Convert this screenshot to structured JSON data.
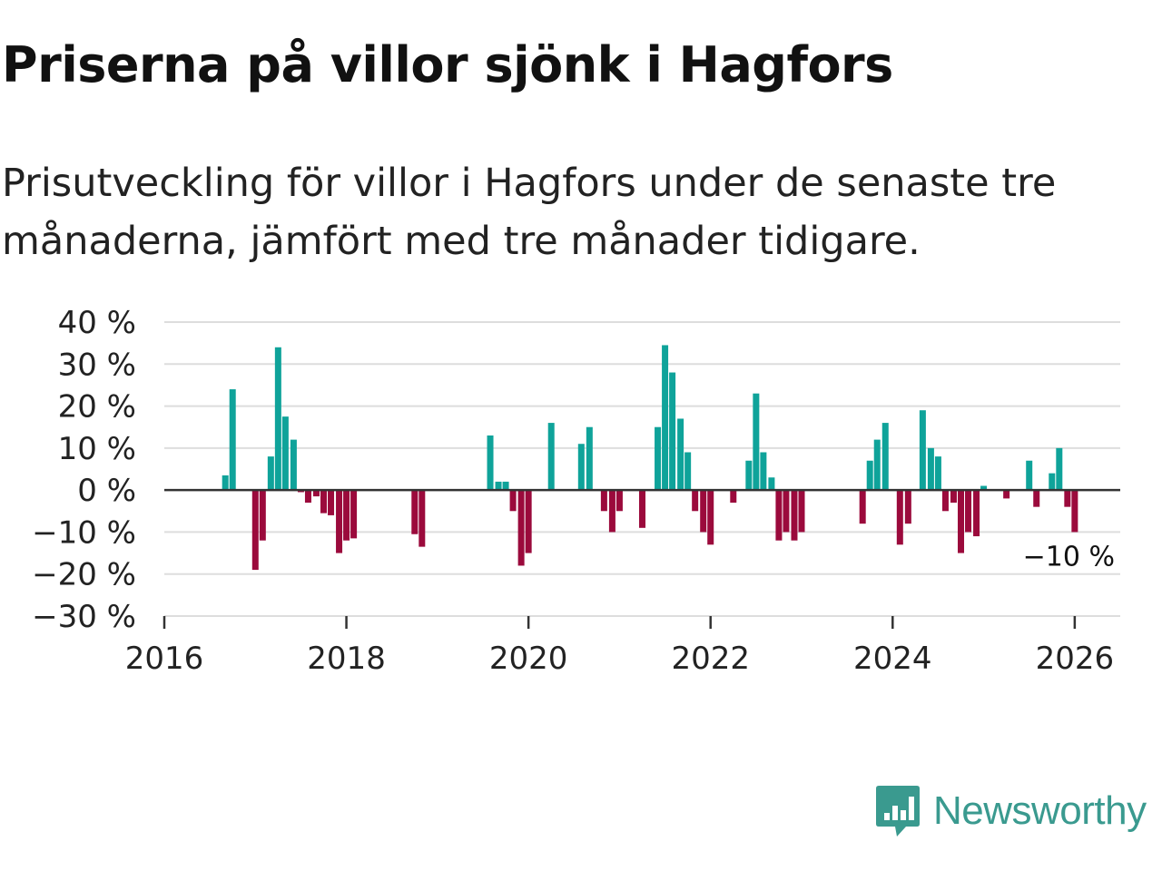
{
  "title": "Priserna på villor sjönk i Hagfors",
  "subtitle": "Prisutveckling för villor i Hagfors under de senaste tre månaderna, jämfört med tre månader tidigare.",
  "brand": {
    "name": "Newsworthy",
    "color": "#3a9a8f",
    "icon": "newsworthy-chart-bubble-icon"
  },
  "colors": {
    "positive": "#0fa39a",
    "negative": "#9b0a3c",
    "grid": "#dddddd",
    "zero": "#333333"
  },
  "chart_data": {
    "type": "bar",
    "title": "Priserna på villor sjönk i Hagfors",
    "xlabel": "",
    "ylabel": "",
    "ylim": [
      -30,
      40
    ],
    "xlim": [
      2016,
      2026.5
    ],
    "y_ticks": [
      40,
      30,
      20,
      10,
      0,
      -10,
      -20,
      -30
    ],
    "y_tick_labels": [
      "40 %",
      "30 %",
      "20 %",
      "10 %",
      "0 %",
      "−10 %",
      "−20 %",
      "−30 %"
    ],
    "x_ticks": [
      2016,
      2018,
      2020,
      2022,
      2024,
      2026
    ],
    "x_tick_labels": [
      "2016",
      "2018",
      "2020",
      "2022",
      "2024",
      "2026"
    ],
    "last_value_label": "−10 %",
    "series": [
      {
        "name": "Prisutveckling",
        "x": [
          2016.67,
          2016.75,
          2017.0,
          2017.08,
          2017.17,
          2017.25,
          2017.33,
          2017.42,
          2017.5,
          2017.58,
          2017.67,
          2017.75,
          2017.83,
          2017.92,
          2018.0,
          2018.08,
          2018.75,
          2018.83,
          2019.58,
          2019.67,
          2019.75,
          2019.83,
          2019.92,
          2020.0,
          2020.25,
          2020.58,
          2020.67,
          2020.83,
          2020.92,
          2021.0,
          2021.25,
          2021.42,
          2021.5,
          2021.58,
          2021.67,
          2021.75,
          2021.83,
          2021.92,
          2022.0,
          2022.25,
          2022.42,
          2022.5,
          2022.58,
          2022.67,
          2022.75,
          2022.83,
          2022.92,
          2023.0,
          2023.67,
          2023.75,
          2023.83,
          2023.92,
          2024.08,
          2024.17,
          2024.33,
          2024.42,
          2024.5,
          2024.58,
          2024.67,
          2024.75,
          2024.83,
          2024.92,
          2025.0,
          2025.25,
          2025.5,
          2025.58,
          2025.75,
          2025.83,
          2025.92,
          2026.0
        ],
        "values": [
          3.5,
          24,
          -19,
          -12,
          8,
          34,
          17.5,
          12,
          -0.5,
          -3,
          -1.5,
          -5.5,
          -6,
          -15,
          -12,
          -11.5,
          -10.5,
          -13.5,
          13,
          2,
          2,
          -5,
          -18,
          -15,
          16,
          11,
          15,
          -5,
          -10,
          -5,
          -9,
          15,
          34.5,
          28,
          17,
          9,
          -5,
          -10,
          -13,
          -3,
          7,
          23,
          9,
          3,
          -12,
          -10,
          -12,
          -10,
          -8,
          7,
          12,
          16,
          -13,
          -8,
          19,
          10,
          8,
          -5,
          -3,
          -15,
          -10,
          -11,
          1,
          -2,
          7,
          -4,
          4,
          10,
          -4,
          -10
        ]
      }
    ]
  }
}
